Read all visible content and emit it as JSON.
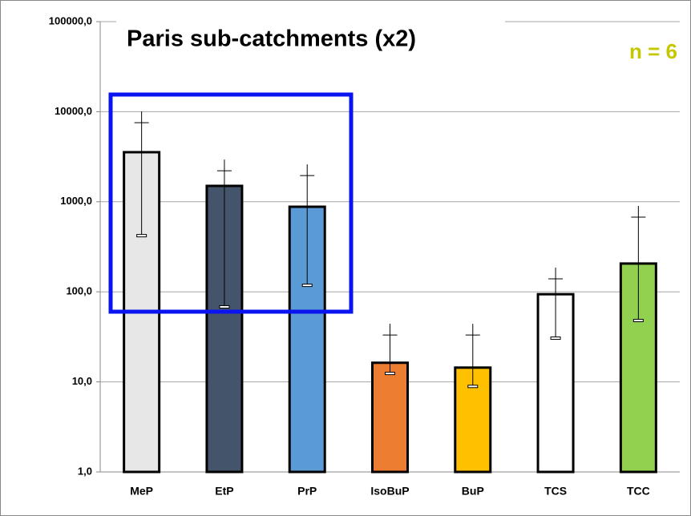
{
  "chart_data": {
    "type": "bar",
    "title": "Paris sub-catchments (x2)",
    "annotation": "n = 6",
    "categories": [
      "MeP",
      "EtP",
      "PrP",
      "IsoBuP",
      "BuP",
      "TCS",
      "TCC"
    ],
    "values": [
      3550,
      1500,
      880,
      16.3,
      14.4,
      94,
      206
    ],
    "error_plus": [
      5350,
      1100,
      1420,
      22.7,
      24.6,
      70,
      589
    ],
    "error_minus": [
      3130,
      1432,
      762,
      3.9,
      5.5,
      63.4,
      158
    ],
    "colors": [
      "#e7e7e7",
      "#44546a",
      "#5b9bd5",
      "#ed7d31",
      "#ffc000",
      "#ffffff",
      "#92d050"
    ],
    "log_scale": true,
    "grid": true,
    "ylim": [
      1,
      100000
    ],
    "yticks": [
      {
        "value": 1,
        "label": "1,0"
      },
      {
        "value": 10,
        "label": "10,0"
      },
      {
        "value": 100,
        "label": "100,0"
      },
      {
        "value": 1000,
        "label": "1000,0"
      },
      {
        "value": 10000,
        "label": "10000,0"
      },
      {
        "value": 100000,
        "label": "100000,0"
      }
    ]
  }
}
